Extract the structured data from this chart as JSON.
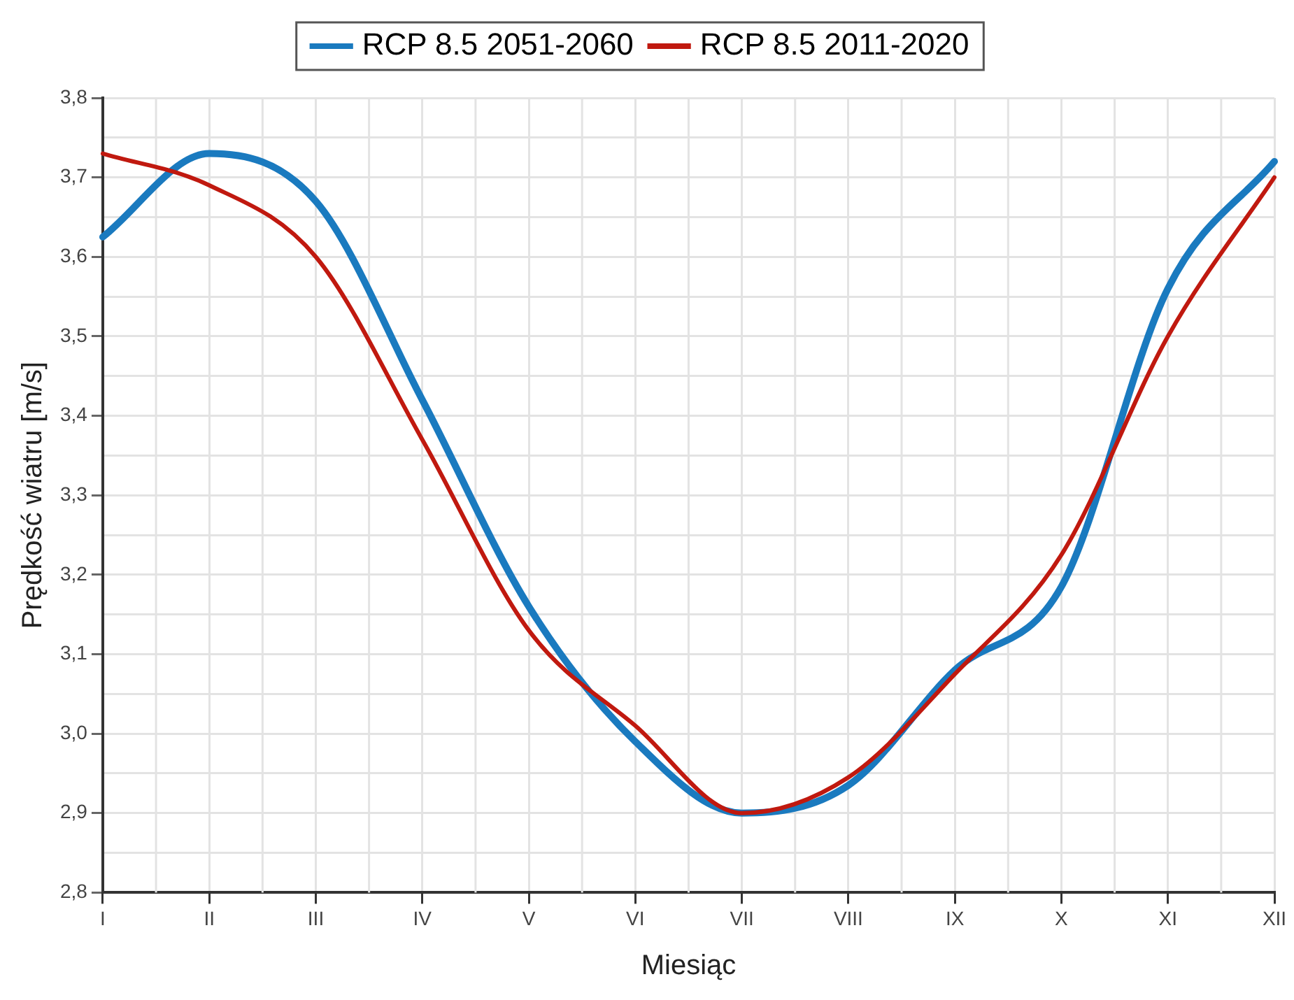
{
  "chart_data": {
    "type": "line",
    "xlabel": "Miesiąc",
    "ylabel": "Prędkość wiatru [m/s]",
    "categories": [
      "I",
      "II",
      "III",
      "IV",
      "V",
      "VI",
      "VII",
      "VIII",
      "IX",
      "X",
      "XI",
      "XII"
    ],
    "series": [
      {
        "name": "RCP 8.5 2051-2060",
        "color": "#1a7abf",
        "values": [
          3.625,
          3.73,
          3.67,
          3.42,
          3.16,
          2.99,
          2.9,
          2.935,
          3.08,
          3.185,
          3.56,
          3.72
        ]
      },
      {
        "name": "RCP 8.5 2011-2020",
        "color": "#c0190f",
        "values": [
          3.73,
          3.69,
          3.6,
          3.37,
          3.13,
          3.01,
          2.9,
          2.945,
          3.075,
          3.225,
          3.5,
          3.7
        ]
      }
    ],
    "ylim": [
      2.8,
      3.8
    ],
    "yticks": [
      {
        "value": 2.8,
        "label": "2,8"
      },
      {
        "value": 2.85,
        "label": null
      },
      {
        "value": 2.9,
        "label": "2,9"
      },
      {
        "value": 2.95,
        "label": null
      },
      {
        "value": 3.0,
        "label": "3,0"
      },
      {
        "value": 3.05,
        "label": null
      },
      {
        "value": 3.1,
        "label": "3,1"
      },
      {
        "value": 3.15,
        "label": null
      },
      {
        "value": 3.2,
        "label": "3,2"
      },
      {
        "value": 3.25,
        "label": null
      },
      {
        "value": 3.3,
        "label": "3,3"
      },
      {
        "value": 3.35,
        "label": null
      },
      {
        "value": 3.4,
        "label": "3,4"
      },
      {
        "value": 3.45,
        "label": null
      },
      {
        "value": 3.5,
        "label": "3,5"
      },
      {
        "value": 3.55,
        "label": null
      },
      {
        "value": 3.6,
        "label": "3,6"
      },
      {
        "value": 3.65,
        "label": null
      },
      {
        "value": 3.7,
        "label": "3,7"
      },
      {
        "value": 3.75,
        "label": null
      },
      {
        "value": 3.8,
        "label": "3,8"
      }
    ],
    "grid": true,
    "legend": "top",
    "marker": "none",
    "line_style": "solid"
  }
}
